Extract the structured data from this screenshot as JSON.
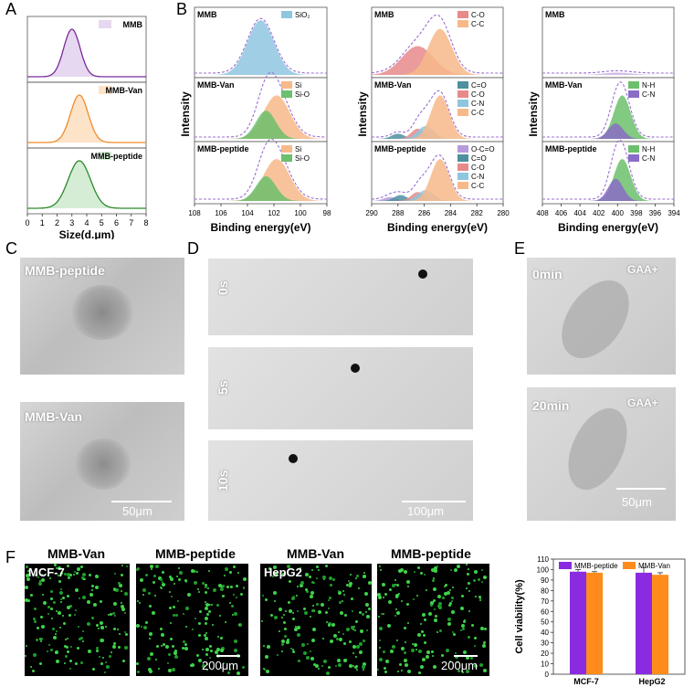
{
  "panels": {
    "A": "A",
    "B": "B",
    "C": "C",
    "D": "D",
    "E": "E",
    "F": "F"
  },
  "chart_data": [
    {
      "id": "A",
      "type": "line",
      "xlabel": "Size(d.μm)",
      "xlim": [
        0,
        8
      ],
      "xticks": [
        0,
        1,
        2,
        3,
        4,
        5,
        6,
        7,
        8
      ],
      "series": [
        {
          "name": "MMB",
          "color": "#7b2a9a",
          "fill": "#e6d8f0",
          "peak": 3.0,
          "width": 0.55
        },
        {
          "name": "MMB-Van",
          "color": "#f08b2e",
          "fill": "#fde3c7",
          "peak": 3.5,
          "width": 0.6
        },
        {
          "name": "MMB-peptide",
          "color": "#2a8a2a",
          "fill": "#d5ecd5",
          "peak": 3.5,
          "width": 0.75
        }
      ]
    },
    {
      "id": "B-Si",
      "type": "area",
      "xlabel": "Binding energy(eV)",
      "ylabel": "Intensity",
      "xlim": [
        108,
        98
      ],
      "xticks": [
        108,
        106,
        104,
        102,
        100,
        98
      ],
      "rows": [
        {
          "sample": "MMB",
          "legend": [
            "SiO₂"
          ],
          "components": [
            {
              "name": "SiO₂",
              "center": 103.0,
              "width": 1.0,
              "amp": 0.95,
              "color": "#8ec6e0"
            }
          ]
        },
        {
          "sample": "MMB-Van",
          "legend": [
            "Si",
            "Si-O"
          ],
          "components": [
            {
              "name": "Si",
              "center": 101.8,
              "width": 1.0,
              "amp": 0.85,
              "color": "#f7b98a"
            },
            {
              "name": "Si-O",
              "center": 102.6,
              "width": 0.75,
              "amp": 0.55,
              "color": "#6cbf6c"
            }
          ]
        },
        {
          "sample": "MMB-peptide",
          "legend": [
            "Si",
            "Si-O"
          ],
          "components": [
            {
              "name": "Si",
              "center": 101.8,
              "width": 1.0,
              "amp": 0.85,
              "color": "#f7b98a"
            },
            {
              "name": "Si-O",
              "center": 102.6,
              "width": 0.75,
              "amp": 0.5,
              "color": "#6cbf6c"
            }
          ]
        }
      ]
    },
    {
      "id": "B-C",
      "type": "area",
      "xlabel": "Binding energy(eV)",
      "ylabel": "Intensity",
      "xlim": [
        290,
        280
      ],
      "xticks": [
        290,
        288,
        286,
        284,
        282,
        280
      ],
      "rows": [
        {
          "sample": "MMB",
          "legend": [
            "C-O",
            "C-C"
          ],
          "components": [
            {
              "name": "C-O",
              "center": 286.5,
              "width": 1.2,
              "amp": 0.5,
              "color": "#e88a8a"
            },
            {
              "name": "C-C",
              "center": 284.8,
              "width": 0.9,
              "amp": 0.8,
              "color": "#f7b98a"
            }
          ]
        },
        {
          "sample": "MMB-Van",
          "legend": [
            "C=O",
            "C-O",
            "C-N",
            "C-C"
          ],
          "components": [
            {
              "name": "C=O",
              "center": 288.0,
              "width": 0.5,
              "amp": 0.1,
              "color": "#4e8fa0"
            },
            {
              "name": "C-O",
              "center": 286.5,
              "width": 0.5,
              "amp": 0.2,
              "color": "#e88a8a"
            },
            {
              "name": "C-N",
              "center": 285.9,
              "width": 0.6,
              "amp": 0.25,
              "color": "#8ec6e0"
            },
            {
              "name": "C-C",
              "center": 284.8,
              "width": 0.7,
              "amp": 0.85,
              "color": "#f7b98a"
            }
          ]
        },
        {
          "sample": "MMB-peptide",
          "legend": [
            "O-C=O",
            "C=O",
            "C-O",
            "C-N",
            "C-C"
          ],
          "components": [
            {
              "name": "O-C=O",
              "center": 288.6,
              "width": 0.5,
              "amp": 0.08,
              "color": "#b79adc"
            },
            {
              "name": "C=O",
              "center": 287.8,
              "width": 0.5,
              "amp": 0.12,
              "color": "#4e8fa0"
            },
            {
              "name": "C-O",
              "center": 286.5,
              "width": 0.5,
              "amp": 0.18,
              "color": "#e88a8a"
            },
            {
              "name": "C-N",
              "center": 285.9,
              "width": 0.6,
              "amp": 0.22,
              "color": "#8ec6e0"
            },
            {
              "name": "C-C",
              "center": 284.8,
              "width": 0.7,
              "amp": 0.85,
              "color": "#f7b98a"
            }
          ]
        }
      ]
    },
    {
      "id": "B-N",
      "type": "area",
      "xlabel": "Binding energy(eV)",
      "ylabel": "Intensity",
      "xlim": [
        408,
        394
      ],
      "xticks": [
        408,
        406,
        404,
        402,
        400,
        398,
        396,
        394
      ],
      "rows": [
        {
          "sample": "MMB",
          "legend": [],
          "components": [
            {
              "name": "bg",
              "center": 400.0,
              "width": 1.5,
              "amp": 0.04,
              "color": "#c9b3e0"
            }
          ]
        },
        {
          "sample": "MMB-Van",
          "legend": [
            "N-H",
            "C-N"
          ],
          "components": [
            {
              "name": "N-H",
              "center": 399.5,
              "width": 0.9,
              "amp": 0.85,
              "color": "#6cbf6c"
            },
            {
              "name": "C-N",
              "center": 400.2,
              "width": 0.8,
              "amp": 0.3,
              "color": "#8a6cc6"
            }
          ]
        },
        {
          "sample": "MMB-peptide",
          "legend": [
            "N-H",
            "C-N"
          ],
          "components": [
            {
              "name": "N-H",
              "center": 399.5,
              "width": 0.9,
              "amp": 0.85,
              "color": "#6cbf6c"
            },
            {
              "name": "C-N",
              "center": 400.2,
              "width": 0.8,
              "amp": 0.45,
              "color": "#8a6cc6"
            }
          ]
        }
      ]
    },
    {
      "id": "F-bar",
      "type": "bar",
      "categories": [
        "MCF-7",
        "HepG2"
      ],
      "series": [
        {
          "name": "MMB-peptide",
          "values": [
            98,
            97
          ],
          "errors": [
            2,
            5
          ],
          "color": "#8a2be2"
        },
        {
          "name": "MMB-Van",
          "values": [
            97,
            95
          ],
          "errors": [
            1,
            2
          ],
          "color": "#ff8c1a"
        }
      ],
      "ylabel": "Cell viability(%)",
      "ylim": [
        0,
        110
      ],
      "yticks": [
        0,
        10,
        20,
        30,
        40,
        50,
        60,
        70,
        80,
        90,
        100,
        110
      ],
      "legend": "top"
    }
  ],
  "C": {
    "top_label": "MMB-peptide",
    "bottom_label": "MMB-Van",
    "scale": "50μm"
  },
  "D": {
    "times": [
      "0s",
      "5s",
      "10s"
    ],
    "scale": "100μm"
  },
  "E": {
    "top_time": "0min",
    "bottom_time": "20min",
    "tag": "GAA+",
    "scale": "50μm"
  },
  "F": {
    "titles": [
      "MMB-Van",
      "MMB-peptide",
      "MMB-Van",
      "MMB-peptide"
    ],
    "cells": [
      "MCF-7",
      "HepG2"
    ],
    "scale": "200μm"
  }
}
